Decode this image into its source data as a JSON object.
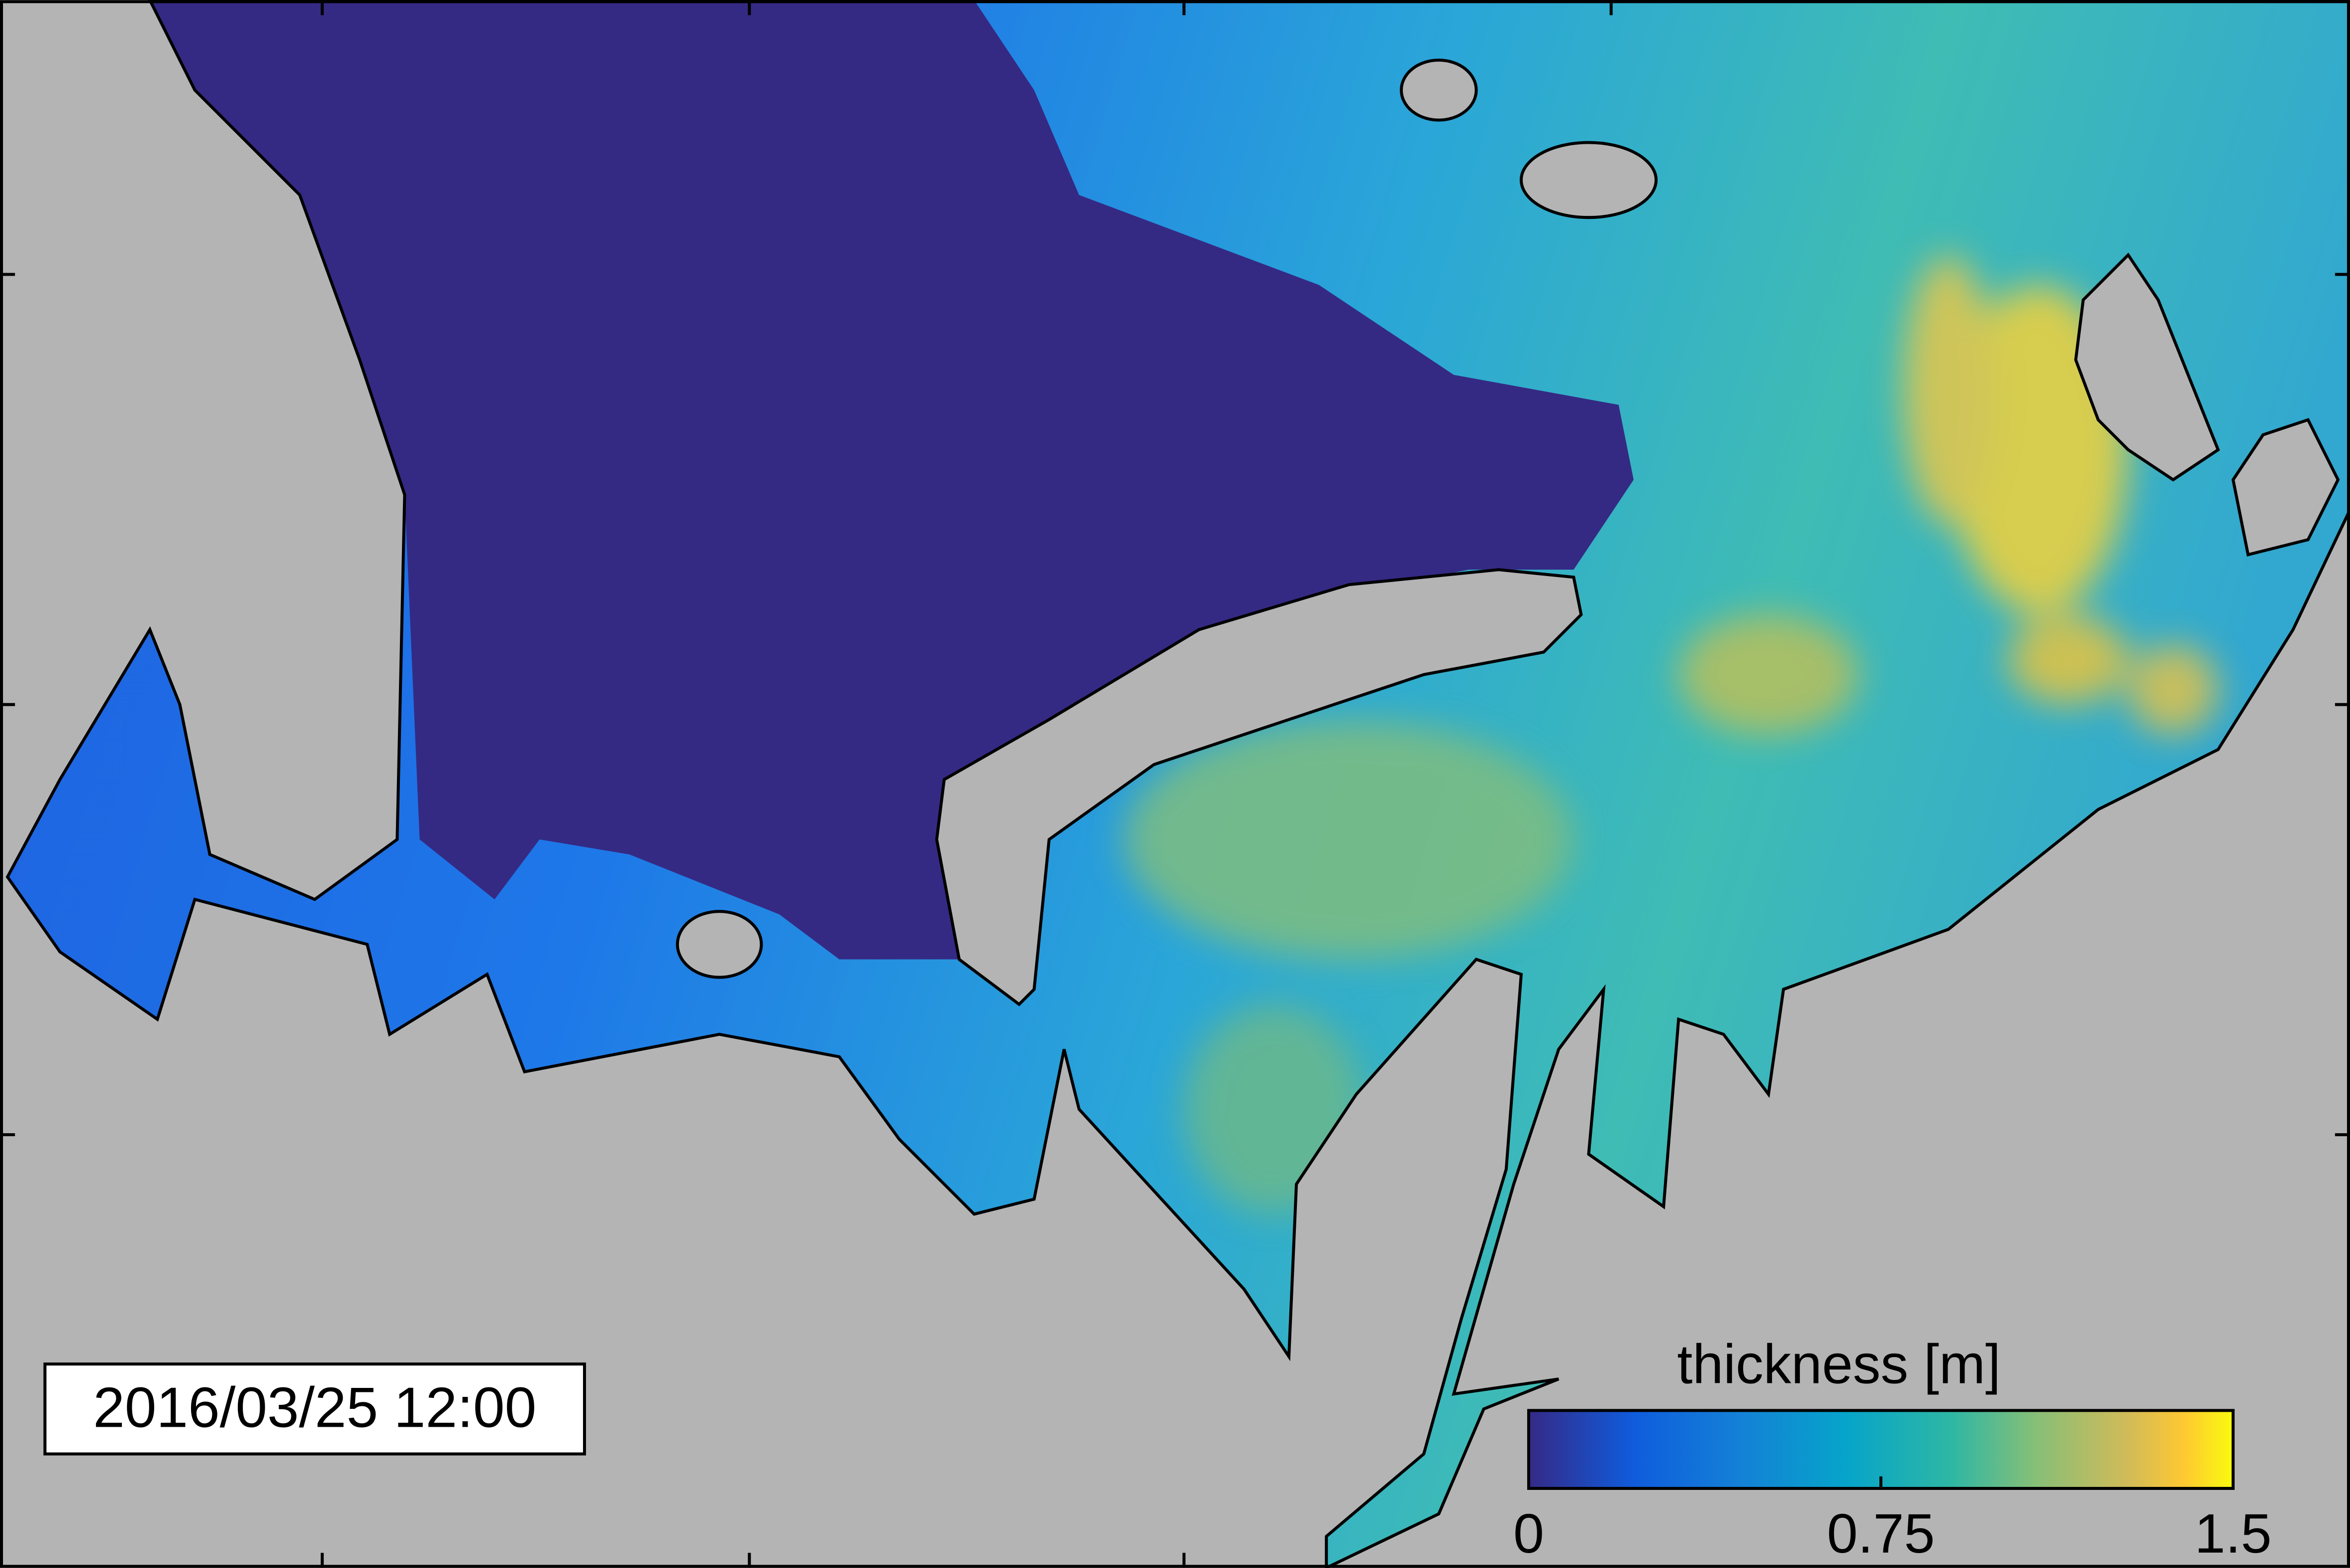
{
  "timestamp": "2016/03/25 12:00",
  "colorbar": {
    "label": "thickness [m]",
    "range": [
      0,
      1.5
    ],
    "ticks": [
      0,
      0.75,
      1.5
    ]
  }
}
